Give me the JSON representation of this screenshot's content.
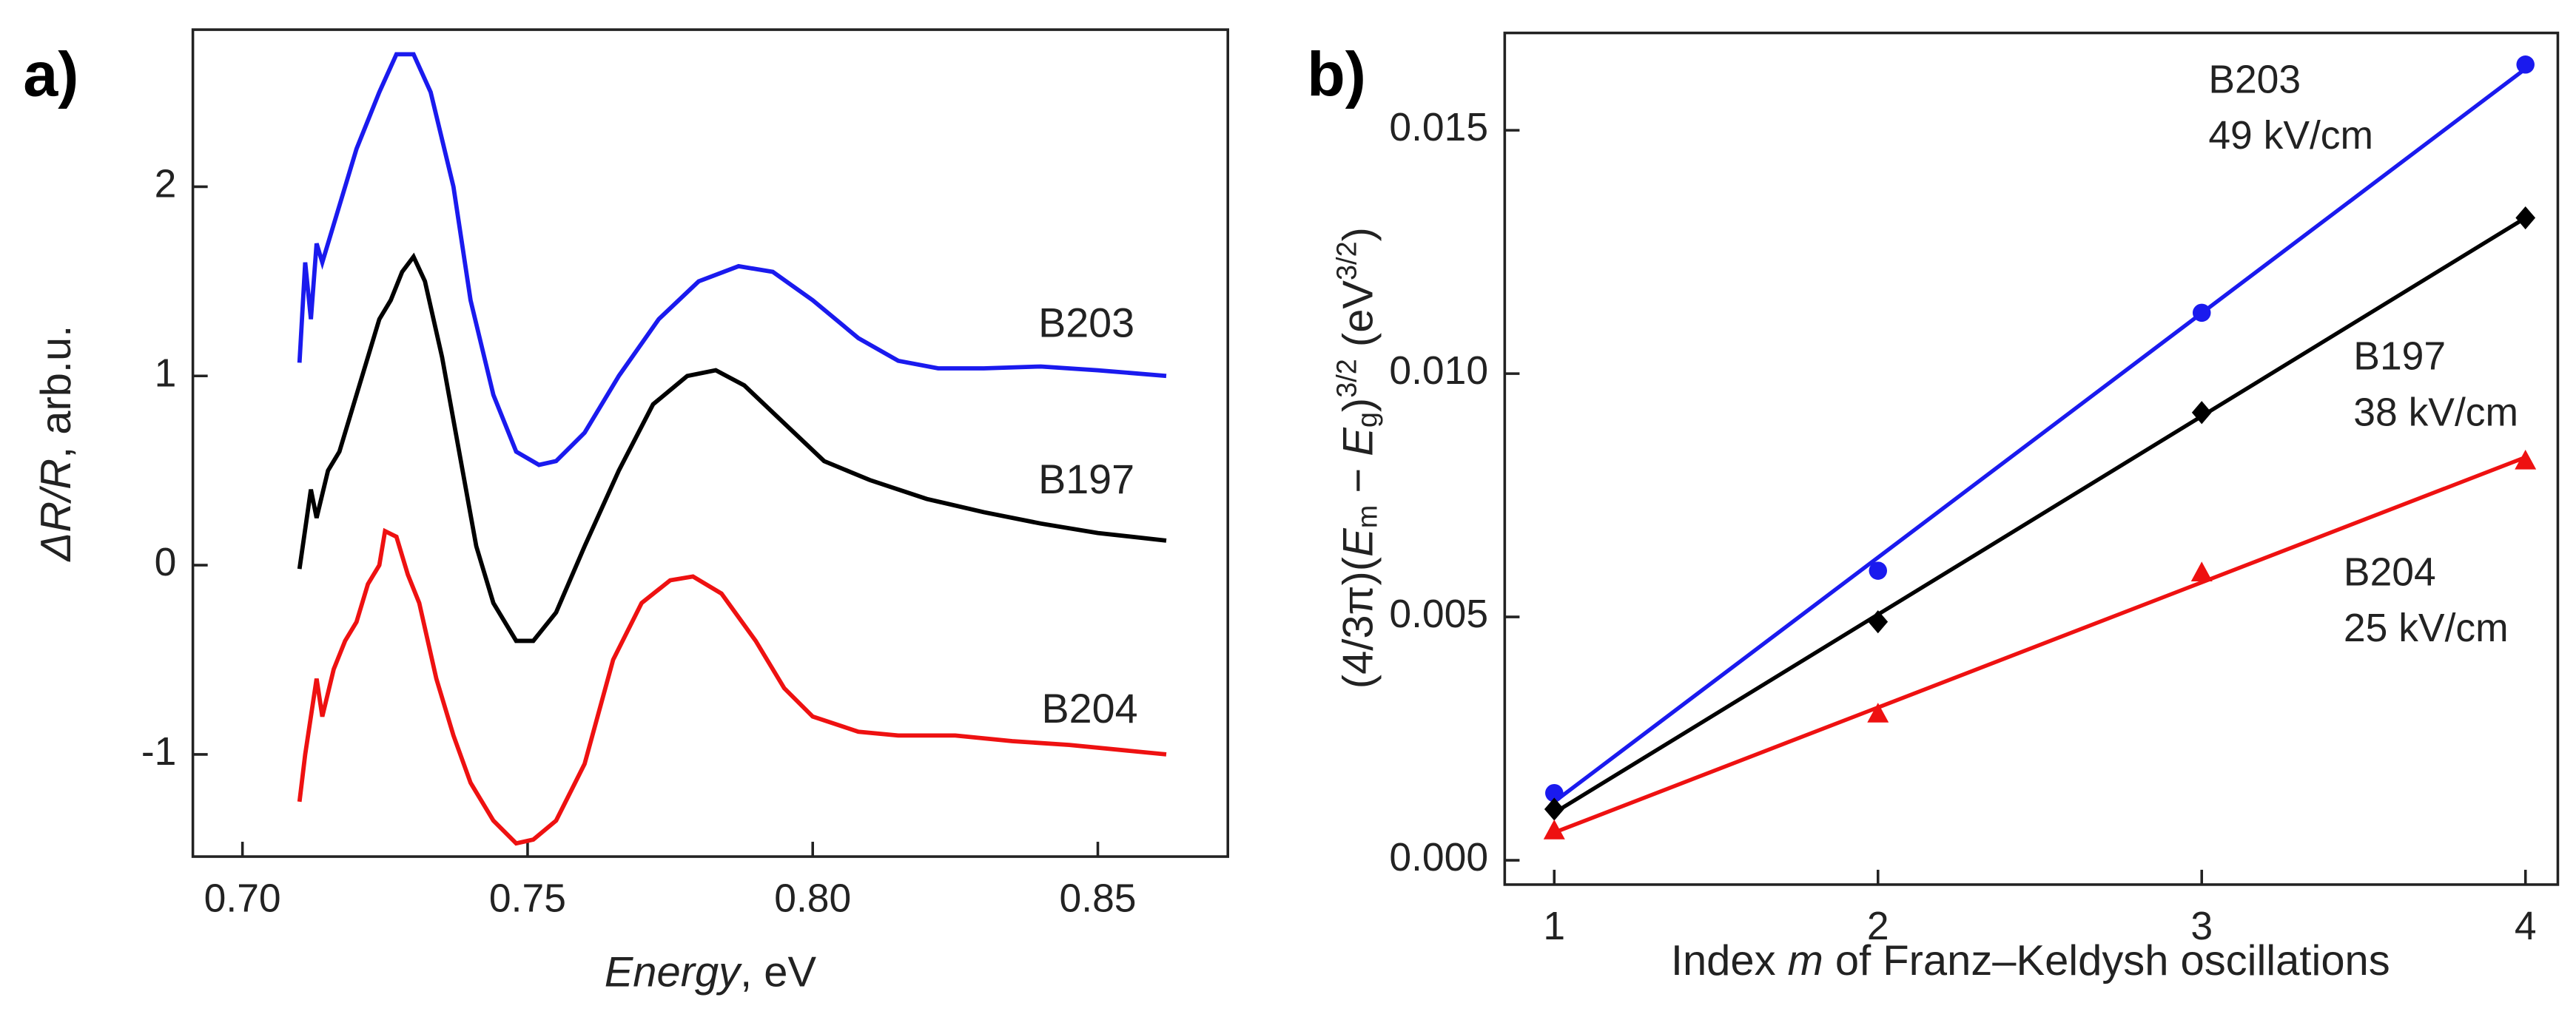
{
  "chart_data": [
    {
      "type": "line",
      "panel_label": "a)",
      "xlabel": [
        "Energy",
        ", eV"
      ],
      "ylabel": [
        "ΔR/R",
        ", arb.u."
      ],
      "xlim": [
        0.6913,
        0.8728
      ],
      "ylim": [
        -1.54,
        2.83
      ],
      "xticks": [
        {
          "value": 0.7,
          "label": "0.70"
        },
        {
          "value": 0.75,
          "label": "0.75"
        },
        {
          "value": 0.8,
          "label": "0.80"
        },
        {
          "value": 0.85,
          "label": "0.85"
        }
      ],
      "yticks": [
        -1,
        0,
        1,
        2
      ],
      "series": [
        {
          "name": "B203",
          "color": "#1a1aee",
          "x": [
            0.71,
            0.711,
            0.712,
            0.713,
            0.714,
            0.716,
            0.718,
            0.72,
            0.724,
            0.727,
            0.73,
            0.733,
            0.737,
            0.74,
            0.744,
            0.748,
            0.752,
            0.755,
            0.76,
            0.766,
            0.773,
            0.78,
            0.787,
            0.793,
            0.8,
            0.808,
            0.815,
            0.822,
            0.83,
            0.84,
            0.85,
            0.862
          ],
          "values": [
            1.07,
            1.6,
            1.3,
            1.7,
            1.6,
            1.8,
            2.0,
            2.2,
            2.5,
            2.7,
            2.7,
            2.5,
            2.0,
            1.4,
            0.9,
            0.6,
            0.53,
            0.55,
            0.7,
            1.0,
            1.3,
            1.5,
            1.58,
            1.55,
            1.4,
            1.2,
            1.08,
            1.04,
            1.04,
            1.05,
            1.03,
            1.0
          ]
        },
        {
          "name": "B197",
          "color": "#000000",
          "x": [
            0.71,
            0.712,
            0.713,
            0.715,
            0.717,
            0.72,
            0.722,
            0.724,
            0.726,
            0.728,
            0.73,
            0.732,
            0.735,
            0.738,
            0.741,
            0.744,
            0.748,
            0.751,
            0.755,
            0.76,
            0.766,
            0.772,
            0.778,
            0.783,
            0.788,
            0.795,
            0.802,
            0.81,
            0.82,
            0.83,
            0.84,
            0.85,
            0.862
          ],
          "values": [
            -0.02,
            0.4,
            0.25,
            0.5,
            0.6,
            0.9,
            1.1,
            1.3,
            1.4,
            1.55,
            1.63,
            1.5,
            1.1,
            0.6,
            0.1,
            -0.2,
            -0.4,
            -0.4,
            -0.25,
            0.1,
            0.5,
            0.85,
            1.0,
            1.03,
            0.95,
            0.75,
            0.55,
            0.45,
            0.35,
            0.28,
            0.22,
            0.17,
            0.13
          ]
        },
        {
          "name": "B204",
          "color": "#ee1111",
          "x": [
            0.71,
            0.711,
            0.713,
            0.714,
            0.716,
            0.718,
            0.72,
            0.722,
            0.724,
            0.725,
            0.727,
            0.729,
            0.731,
            0.734,
            0.737,
            0.74,
            0.744,
            0.748,
            0.751,
            0.755,
            0.76,
            0.765,
            0.77,
            0.775,
            0.779,
            0.784,
            0.79,
            0.795,
            0.8,
            0.808,
            0.815,
            0.825,
            0.835,
            0.845,
            0.862
          ],
          "values": [
            -1.25,
            -1.0,
            -0.6,
            -0.8,
            -0.55,
            -0.4,
            -0.3,
            -0.1,
            0.0,
            0.18,
            0.15,
            -0.05,
            -0.2,
            -0.6,
            -0.9,
            -1.15,
            -1.35,
            -1.47,
            -1.45,
            -1.35,
            -1.05,
            -0.5,
            -0.2,
            -0.08,
            -0.06,
            -0.15,
            -0.4,
            -0.65,
            -0.8,
            -0.88,
            -0.9,
            -0.9,
            -0.93,
            -0.95,
            -1.0
          ]
        }
      ]
    },
    {
      "type": "scatter",
      "panel_label": "b)",
      "xlabel": [
        "Index ",
        "m",
        " of Franz–Keldysh oscillations"
      ],
      "ylabel": [
        "(4/3π)(",
        "E",
        "m",
        " − ",
        "E",
        "g",
        ")",
        "3/2",
        " (eV",
        "3/2",
        ")"
      ],
      "xlim": [
        0.847,
        4.1
      ],
      "ylim": [
        -0.0005,
        0.017
      ],
      "xticks": [
        1,
        2,
        3,
        4
      ],
      "yticks": [
        {
          "value": 0,
          "label": "0.000"
        },
        {
          "value": 0.005,
          "label": "0.005"
        },
        {
          "value": 0.01,
          "label": "0.010"
        },
        {
          "value": 0.015,
          "label": "0.015"
        }
      ],
      "series": [
        {
          "name": "B203",
          "color": "#1a1aee",
          "marker": "circle",
          "x": [
            1,
            2,
            3,
            4
          ],
          "values": [
            0.00138,
            0.00595,
            0.01125,
            0.01635
          ]
        },
        {
          "name": "B197",
          "color": "#000000",
          "marker": "diamond",
          "x": [
            1,
            2,
            3,
            4
          ],
          "values": [
            0.00105,
            0.0049,
            0.0092,
            0.0132
          ]
        },
        {
          "name": "B204",
          "color": "#ee1111",
          "marker": "triangle",
          "x": [
            1,
            2,
            3,
            4
          ],
          "values": [
            0.0006,
            0.003,
            0.0059,
            0.0082
          ]
        }
      ],
      "annotations": [
        {
          "lines": [
            "B203",
            "49 kV/cm"
          ]
        },
        {
          "lines": [
            "B197",
            "38 kV/cm"
          ]
        },
        {
          "lines": [
            "B204",
            "25 kV/cm"
          ]
        }
      ]
    }
  ]
}
